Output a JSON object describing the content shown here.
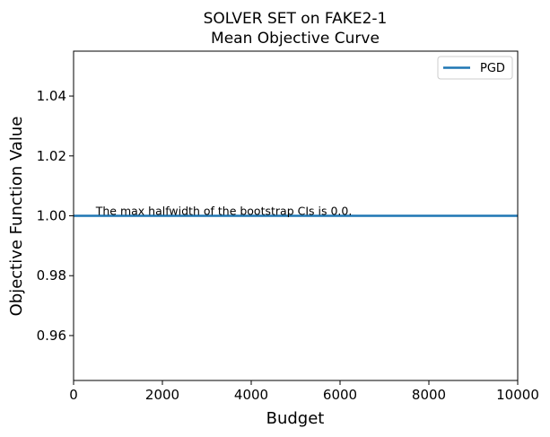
{
  "chart_data": {
    "type": "line",
    "title_line1": "SOLVER SET on FAKE2-1",
    "title_line2": "Mean Objective Curve",
    "xlabel": "Budget",
    "ylabel": "Objective Function Value",
    "xlim": [
      0,
      10000
    ],
    "ylim": [
      0.945,
      1.055
    ],
    "xticks": [
      0,
      2000,
      4000,
      6000,
      8000,
      10000
    ],
    "yticks": [
      0.96,
      0.98,
      1.0,
      1.02,
      1.04
    ],
    "ytick_labels": [
      "0.96",
      "0.98",
      "1.00",
      "1.02",
      "1.04"
    ],
    "grid": false,
    "legend_position": "top-right",
    "series": [
      {
        "name": "PGD",
        "color": "#1f77b4",
        "x": [
          0,
          10000
        ],
        "y": [
          1.0,
          1.0
        ]
      }
    ],
    "annotation": {
      "text": "The max halfwidth of the bootstrap CIs is 0.0.",
      "x": 500,
      "y": 1.0
    }
  }
}
